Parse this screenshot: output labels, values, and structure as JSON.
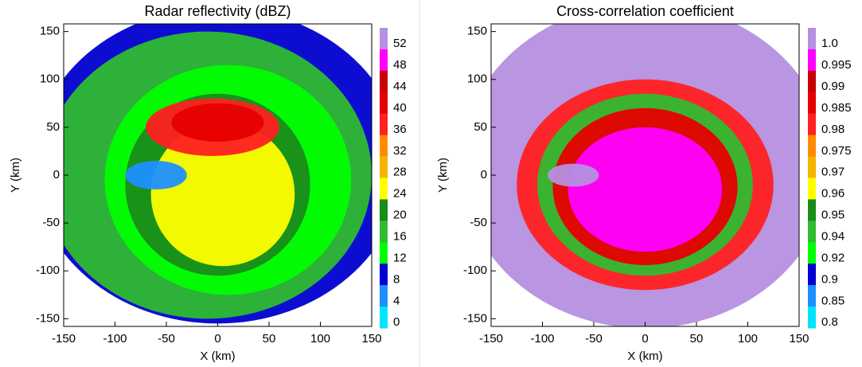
{
  "chart_data": [
    {
      "type": "heatmap",
      "title": "Radar reflectivity (dBZ)",
      "xlabel": "X (km)",
      "ylabel": "Y (km)",
      "xlim": [
        -150,
        150
      ],
      "ylim": [
        -158,
        158
      ],
      "xticks": [
        -150,
        -100,
        -50,
        0,
        50,
        100,
        150
      ],
      "yticks": [
        -150,
        -100,
        -50,
        0,
        50,
        100,
        150
      ],
      "colorbar": {
        "levels": [
          52,
          48,
          44,
          40,
          36,
          32,
          28,
          24,
          20,
          16,
          12,
          8,
          4,
          0
        ],
        "colors": [
          "#b58fe0",
          "#ff00ff",
          "#c80000",
          "#e60000",
          "#ff2020",
          "#ff8c00",
          "#f5b400",
          "#ffff00",
          "#1a8c1a",
          "#30bb30",
          "#00ff00",
          "#0000d0",
          "#1e90ff",
          "#00e5ff"
        ]
      }
    },
    {
      "type": "heatmap",
      "title": "Cross-correlation coefficient",
      "xlabel": "X (km)",
      "ylabel": "Y (km)",
      "xlim": [
        -150,
        150
      ],
      "ylim": [
        -158,
        158
      ],
      "xticks": [
        -150,
        -100,
        -50,
        0,
        50,
        100,
        150
      ],
      "yticks": [
        -150,
        -100,
        -50,
        0,
        50,
        100,
        150
      ],
      "colorbar": {
        "levels": [
          {
            "value": 1,
            "label": "1.0"
          },
          0.995,
          0.99,
          0.985,
          0.98,
          0.975,
          0.97,
          0.96,
          0.95,
          0.94,
          0.92,
          0.9,
          0.85,
          0.8
        ],
        "colors": [
          "#b58fe0",
          "#ff00ff",
          "#c80000",
          "#e60000",
          "#ff2020",
          "#ff8c00",
          "#f5b400",
          "#ffff00",
          "#1a8c1a",
          "#30bb30",
          "#00ff00",
          "#0000d0",
          "#1e90ff",
          "#00e5ff"
        ]
      }
    }
  ]
}
